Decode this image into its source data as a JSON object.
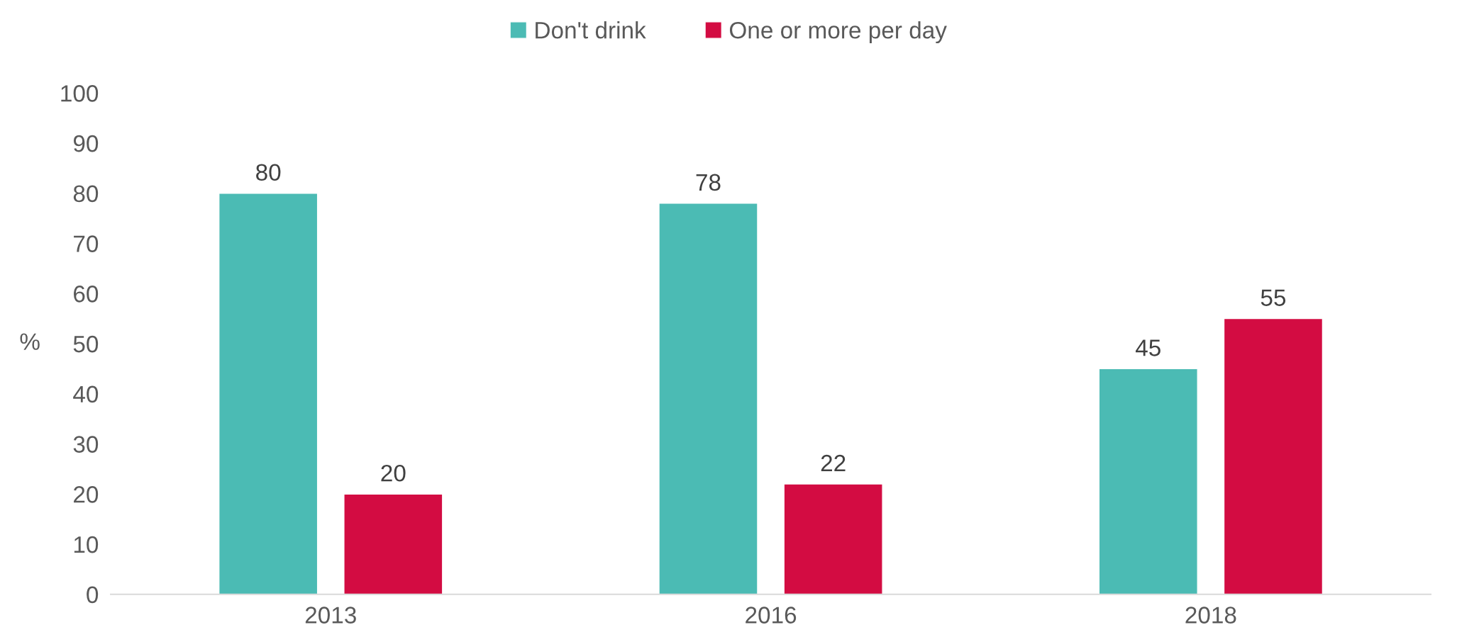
{
  "chart_data": {
    "type": "bar",
    "ylabel": "%",
    "categories": [
      "2013",
      "2016",
      "2018"
    ],
    "series": [
      {
        "name": "Don't drink",
        "color": "#4bbbb4",
        "values": [
          80,
          78,
          45
        ]
      },
      {
        "name": "One or more per day",
        "color": "#d30c42",
        "values": [
          20,
          22,
          55
        ]
      }
    ],
    "ylim": [
      0,
      100
    ],
    "yticks": [
      0,
      10,
      20,
      30,
      40,
      50,
      60,
      70,
      80,
      90,
      100
    ],
    "data_labels": true,
    "grid": false,
    "legend": "top"
  }
}
